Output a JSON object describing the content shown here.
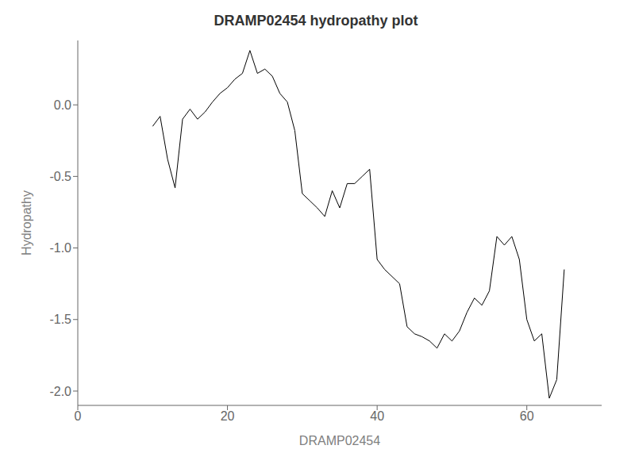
{
  "chart_data": {
    "type": "line",
    "title": "DRAMP02454 hydropathy plot",
    "xlabel": "DRAMP02454",
    "ylabel": "Hydropathy",
    "color": "#000000",
    "grid": false,
    "xlim": [
      0,
      70
    ],
    "ylim": [
      -2.1,
      0.45
    ],
    "xticks": [
      0,
      20,
      40,
      60
    ],
    "yticks": [
      {
        "value": 0.0,
        "label": "0.0"
      },
      -0.5,
      {
        "value": -1.0,
        "label": "-1.0"
      },
      -1.5,
      {
        "value": -2.0,
        "label": "-2.0"
      }
    ],
    "x": [
      10,
      11,
      12,
      13,
      14,
      15,
      16,
      17,
      18,
      19,
      20,
      21,
      22,
      23,
      24,
      25,
      26,
      27,
      28,
      29,
      30,
      31,
      32,
      33,
      34,
      35,
      36,
      37,
      38,
      39,
      40,
      41,
      42,
      43,
      44,
      45,
      46,
      47,
      48,
      49,
      50,
      51,
      52,
      53,
      54,
      55,
      56,
      57,
      58,
      59,
      60,
      61,
      62,
      63,
      64,
      65
    ],
    "values": [
      -0.15,
      -0.08,
      -0.38,
      -0.58,
      -0.1,
      -0.03,
      -0.1,
      -0.05,
      0.02,
      0.08,
      0.12,
      0.18,
      0.22,
      0.38,
      0.22,
      0.25,
      0.2,
      0.08,
      0.02,
      -0.18,
      -0.62,
      -0.67,
      -0.72,
      -0.78,
      -0.6,
      -0.72,
      -0.55,
      -0.55,
      -0.5,
      -0.45,
      -1.08,
      -1.15,
      -1.2,
      -1.25,
      -1.55,
      -1.6,
      -1.62,
      -1.65,
      -1.7,
      -1.6,
      -1.65,
      -1.58,
      -1.45,
      -1.35,
      -1.4,
      -1.3,
      -0.92,
      -0.98,
      -0.92,
      -1.08,
      -1.5,
      -1.65,
      -1.6,
      -2.05,
      -1.92,
      -1.15
    ]
  }
}
